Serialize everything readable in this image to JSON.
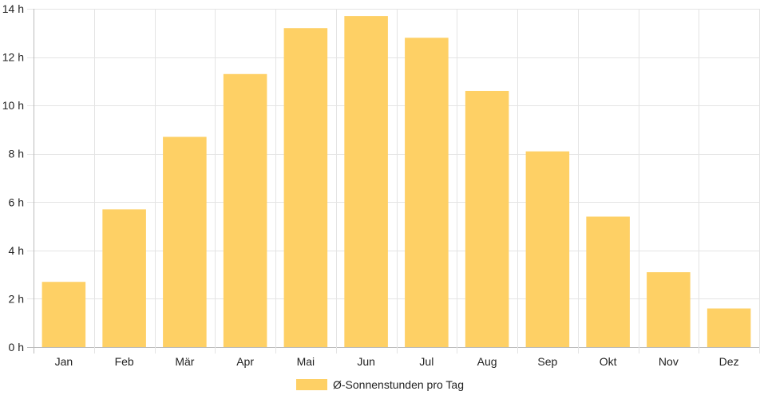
{
  "chart_data": {
    "type": "bar",
    "categories": [
      "Jan",
      "Feb",
      "Mär",
      "Apr",
      "Mai",
      "Jun",
      "Jul",
      "Aug",
      "Sep",
      "Okt",
      "Nov",
      "Dez"
    ],
    "series": [
      {
        "name": "Ø-Sonnenstunden pro Tag",
        "values": [
          2.7,
          5.7,
          8.7,
          11.3,
          13.2,
          13.7,
          12.8,
          10.6,
          8.1,
          5.4,
          3.1,
          1.6
        ],
        "color": "#fed065"
      }
    ],
    "ylim": [
      0,
      14
    ],
    "yticks": [
      0,
      2,
      4,
      6,
      8,
      10,
      12,
      14
    ],
    "ytick_suffix": " h",
    "grid": true,
    "legend_position": "bottom"
  }
}
